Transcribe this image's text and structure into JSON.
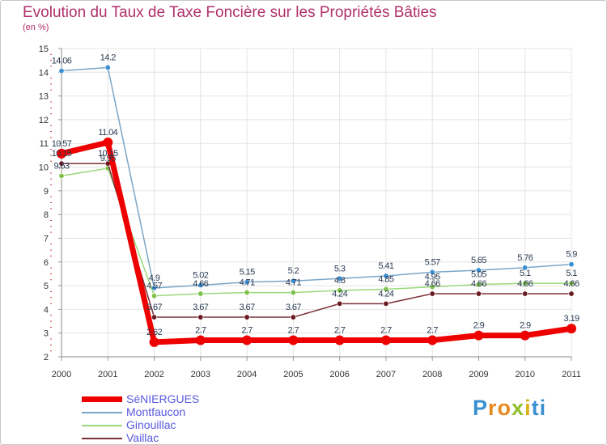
{
  "title": "Evolution du Taux de Taxe Foncière sur les Propriétés Bâties",
  "subtitle": "(en %)",
  "logo": {
    "text": "Proxiti",
    "letters": [
      "P",
      "r",
      "o",
      "x",
      "i",
      "ti"
    ]
  },
  "chart_data": {
    "type": "line",
    "title": "Evolution du Taux de Taxe Foncière sur les Propriétés Bâties",
    "ylabel": "(en %)",
    "xlabel": "",
    "ylim": [
      2,
      15
    ],
    "yticks": [
      "2",
      "3",
      "4",
      "5",
      "6",
      "7",
      "8",
      "9",
      "10",
      "11",
      "12",
      "13",
      "14",
      "15"
    ],
    "categories": [
      "2000",
      "2001",
      "2002",
      "2003",
      "2004",
      "2005",
      "2006",
      "2007",
      "2008",
      "2009",
      "2010",
      "2011"
    ],
    "grid": true,
    "legend_position": "bottom-left",
    "series": [
      {
        "name": "Montfaucon",
        "color": "#7aa6c8",
        "marker_color": "#3a8ed0",
        "values": [
          14.06,
          14.2,
          4.9,
          5.02,
          5.15,
          5.2,
          5.3,
          5.41,
          5.57,
          5.65,
          5.76,
          5.9
        ],
        "labels": [
          "14.06",
          "14.2",
          "4.9",
          "5.02",
          "5.15",
          "5.2",
          "5.3",
          "5.41",
          "5.57",
          "5.65",
          "5.76",
          "5.9"
        ]
      },
      {
        "name": "Ginouillac",
        "color": "#9ad87a",
        "marker_color": "#7ec24a",
        "values": [
          9.63,
          9.95,
          4.57,
          4.66,
          4.71,
          4.71,
          4.8,
          4.85,
          4.95,
          5.05,
          5.1,
          5.1
        ],
        "labels": [
          "9.63",
          "9.95",
          "4.57",
          "4.66",
          "4.71",
          "4.71",
          "4.8",
          "4.85",
          "4.95",
          "5.05",
          "5.1",
          "5.1"
        ]
      },
      {
        "name": "Vaillac",
        "color": "#7a3038",
        "marker_color": "#6a1a22",
        "values": [
          10.15,
          10.15,
          3.67,
          3.67,
          3.67,
          3.67,
          4.24,
          4.24,
          4.66,
          4.66,
          4.66,
          4.66
        ],
        "labels": [
          "10.15",
          "10.15",
          "3.67",
          "3.67",
          "3.67",
          "3.67",
          "4.24",
          "4.24",
          "4.66",
          "4.66",
          "4.66",
          "4.66"
        ]
      },
      {
        "name": "SéNIERGUES",
        "color": "#ee0000",
        "marker_color": "#ee0000",
        "values": [
          10.57,
          11.04,
          2.62,
          2.7,
          2.7,
          2.7,
          2.7,
          2.7,
          2.7,
          2.9,
          2.9,
          3.19
        ],
        "labels": [
          "10.57",
          "11.04",
          "2.62",
          "2.7",
          "2.7",
          "2.7",
          "2.7",
          "2.7",
          "2.7",
          "2.9",
          "2.9",
          "3.19"
        ]
      }
    ],
    "legend": [
      {
        "name": "SéNIERGUES",
        "color": "#ee0000"
      },
      {
        "name": "Montfaucon",
        "color": "#7aa6c8"
      },
      {
        "name": "Ginouillac",
        "color": "#9ad87a"
      },
      {
        "name": "Vaillac",
        "color": "#7a3038"
      }
    ]
  }
}
